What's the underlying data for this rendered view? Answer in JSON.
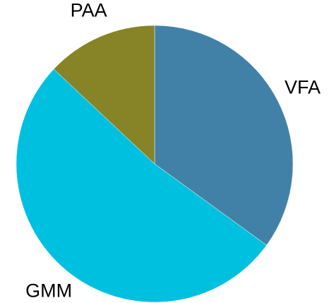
{
  "chart_data": {
    "type": "pie",
    "categories": [
      "VFA",
      "GMM",
      "PAA"
    ],
    "values": [
      35,
      52,
      13
    ],
    "colors": [
      "#4281a7",
      "#00c0e0",
      "#878327"
    ]
  }
}
